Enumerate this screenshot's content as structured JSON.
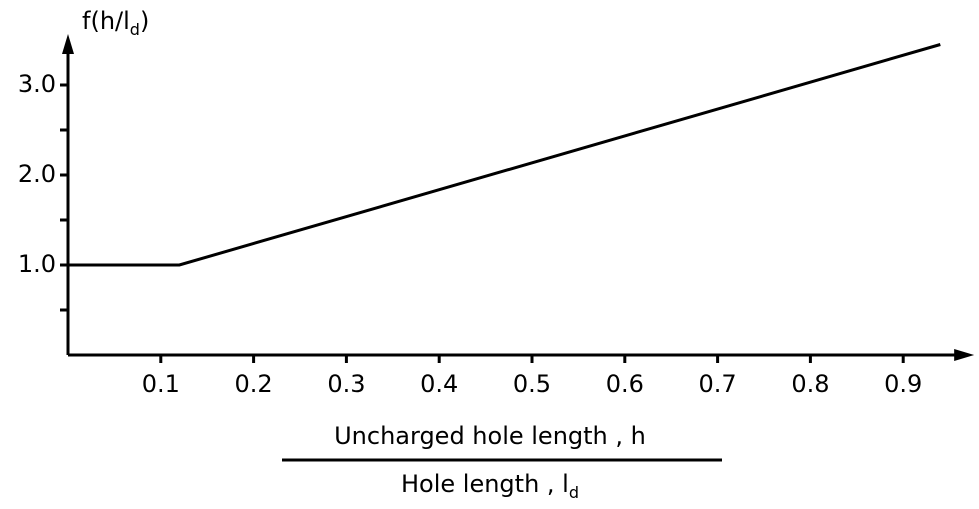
{
  "chart_data": {
    "type": "line",
    "y_label": {
      "main": "f(h/l",
      "sub": "d",
      "close": ")"
    },
    "x_label": {
      "numerator": "Uncharged  hole  length , h",
      "denominator": {
        "main": "Hole  length ,  l",
        "sub": "d"
      }
    },
    "x": [
      0,
      0.12,
      0.94
    ],
    "series": [
      {
        "color": "#000000",
        "values": [
          1.0,
          1.0,
          3.45
        ]
      }
    ],
    "xlim": [
      0,
      0.97
    ],
    "ylim": [
      0,
      3.5
    ],
    "xticks": [
      0.1,
      0.2,
      0.3,
      0.4,
      0.5,
      0.6,
      0.7,
      0.8,
      0.9
    ],
    "yticks": [
      {
        "value": 1,
        "label": "1.0"
      },
      {
        "value": 2,
        "label": "2.0"
      },
      {
        "value": 3,
        "label": "3.0"
      }
    ],
    "yminor_ticks": [
      0.5,
      1.5,
      2.5
    ]
  }
}
